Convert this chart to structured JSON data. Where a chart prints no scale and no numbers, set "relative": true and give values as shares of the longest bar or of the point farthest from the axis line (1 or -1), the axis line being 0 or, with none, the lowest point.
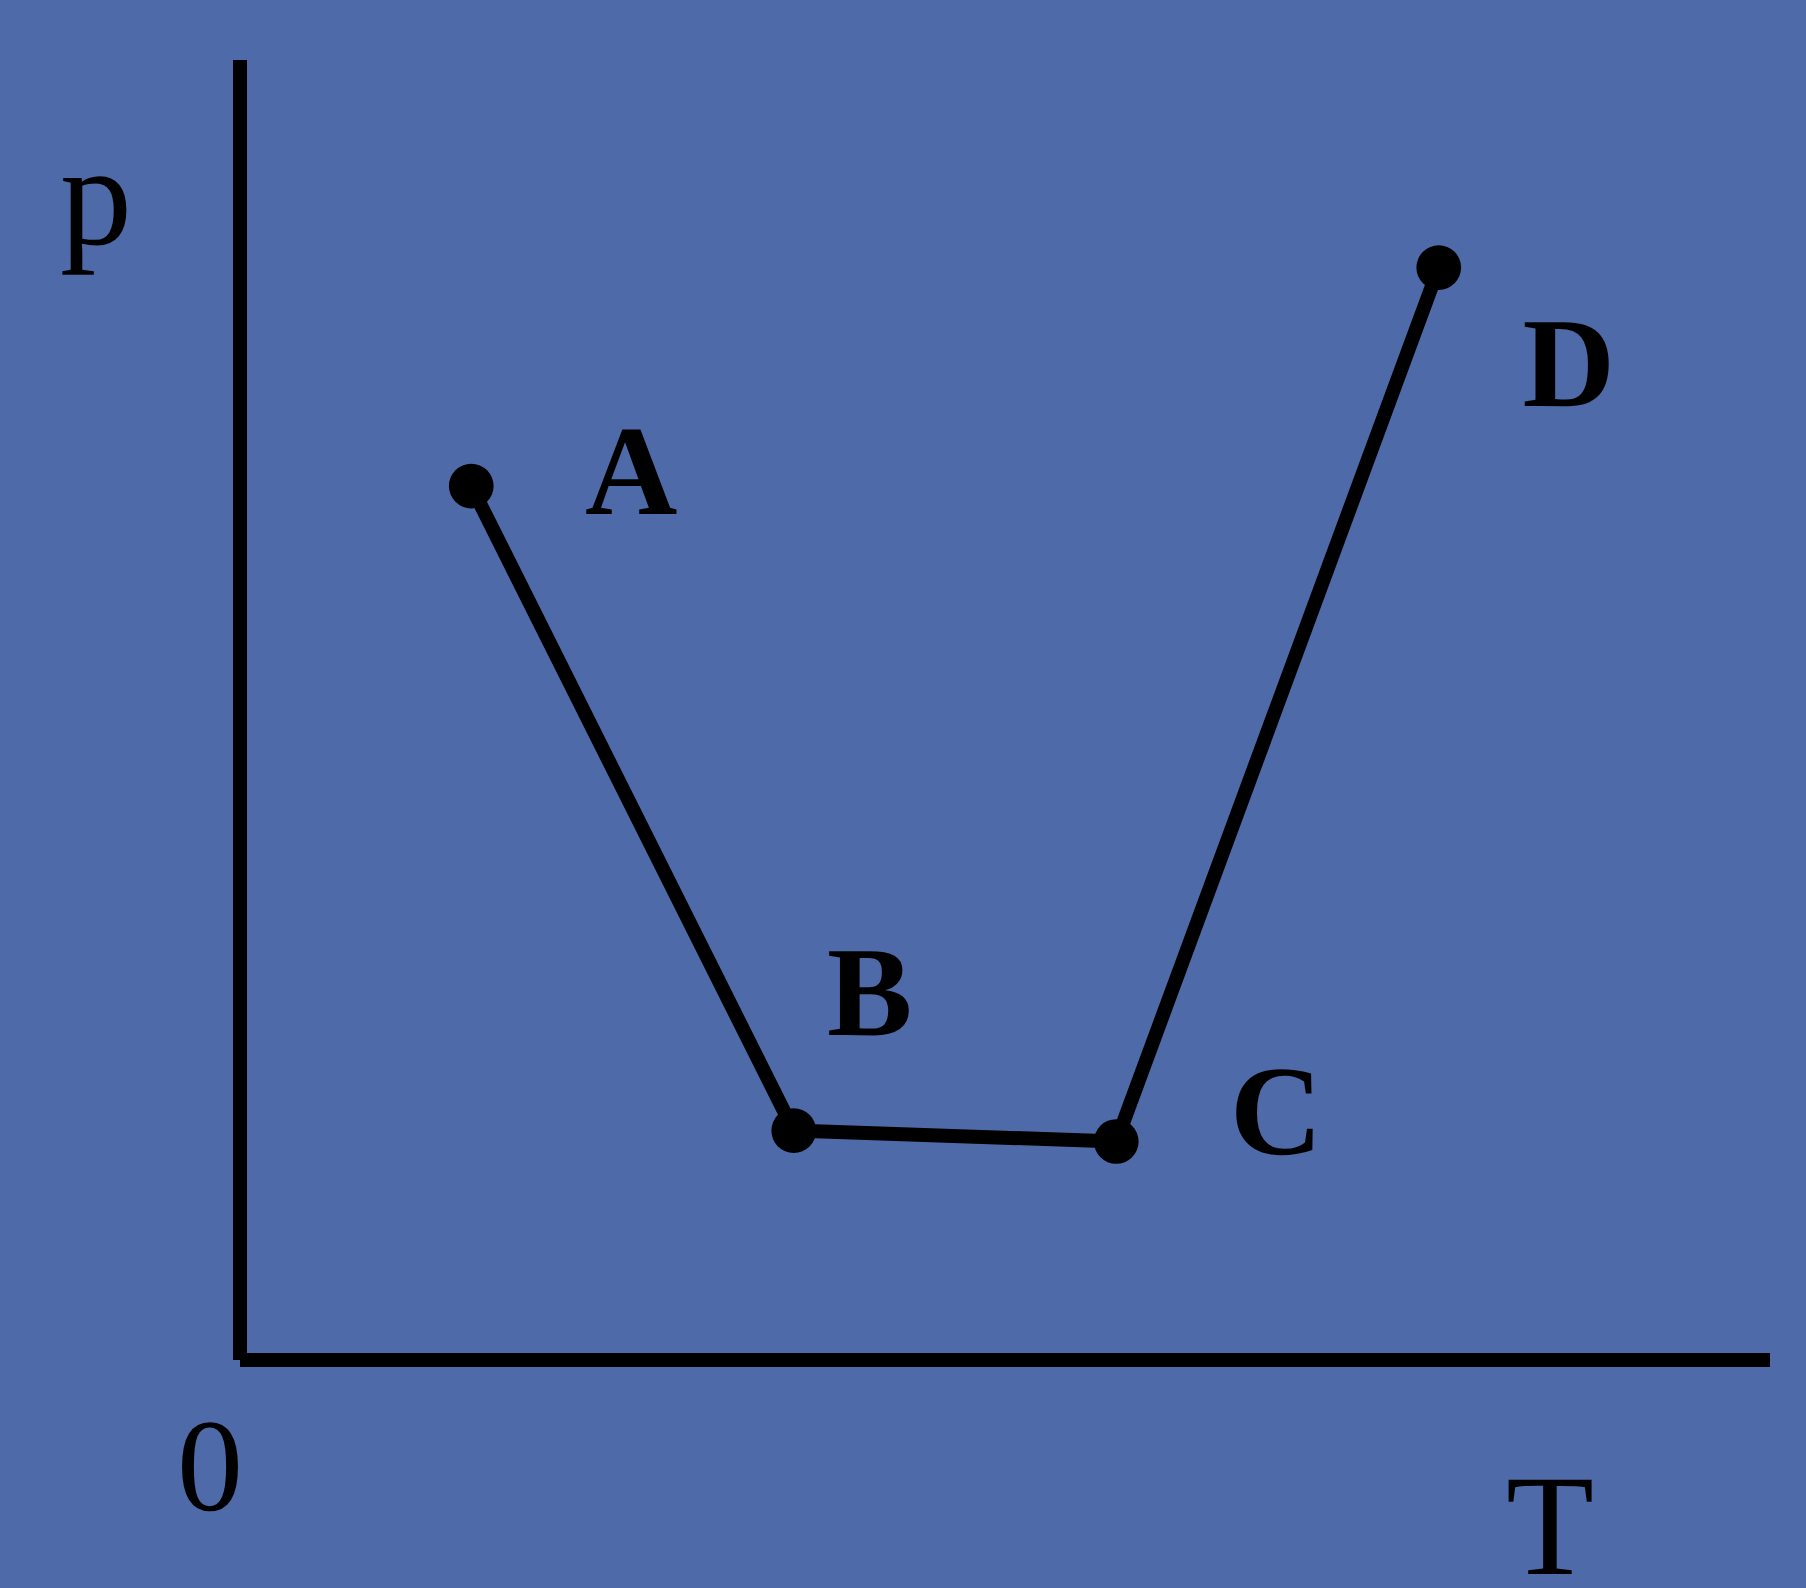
{
  "chart_data": {
    "type": "line",
    "relative": true,
    "xlabel": "T",
    "ylabel": "p",
    "categories": [
      null,
      null,
      null,
      null
    ],
    "series": [
      {
        "color": "#000000",
        "values": [
          0.8,
          0.21,
          0.2,
          1
        ]
      }
    ],
    "marker": "circle",
    "line_style": "solid",
    "annotations": [
      "A",
      "B",
      "C",
      "D",
      "0"
    ]
  }
}
